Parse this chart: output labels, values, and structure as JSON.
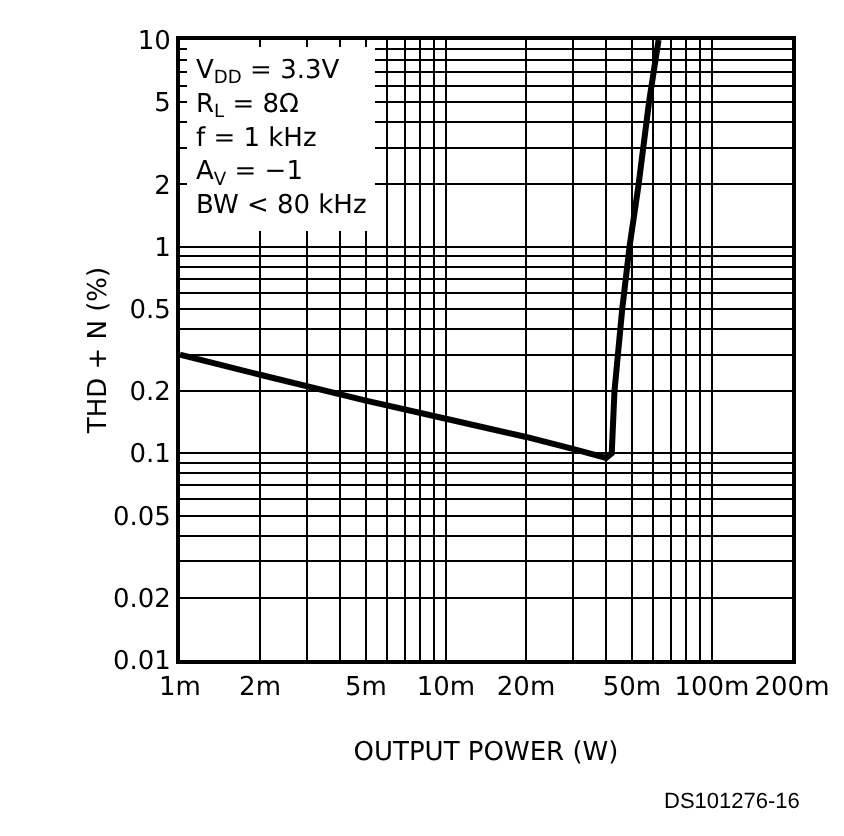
{
  "chart_data": {
    "type": "line",
    "xlabel": "OUTPUT POWER (W)",
    "ylabel": "THD + N (%)",
    "log": "xy",
    "grid": true,
    "x": [
      1,
      2,
      5,
      10,
      20,
      30,
      40,
      42,
      43,
      46,
      49,
      53,
      58,
      63
    ],
    "series": [
      {
        "color": "#000000",
        "values": [
          0.3,
          0.24,
          0.18,
          0.147,
          0.12,
          0.105,
          0.095,
          0.1,
          0.2,
          0.5,
          1,
          2,
          5,
          10
        ]
      }
    ],
    "xlim": [
      1,
      200
    ],
    "xticks": [
      {
        "value": 1,
        "label": "1m"
      },
      {
        "value": 2,
        "label": "2m"
      },
      {
        "value": 5,
        "label": "5m"
      },
      {
        "value": 10,
        "label": "10m"
      },
      {
        "value": 20,
        "label": "20m"
      },
      {
        "value": 50,
        "label": "50m"
      },
      {
        "value": 100,
        "label": "100m"
      },
      {
        "value": 200,
        "label": "200m"
      }
    ],
    "ylim": [
      0.01,
      10
    ],
    "yticks": [
      0.01,
      0.02,
      0.05,
      0.1,
      0.2,
      0.5,
      1,
      2,
      5,
      10
    ],
    "marker": "none",
    "line_style": "solid",
    "annotations": [
      "V$_{DD}$ = 3.3V\nR$_{L}$ = 8Ω\nf = 1 kHz\nA$_{V}$ = −1\nBW < 80 kHz",
      "DS101276-16"
    ]
  }
}
